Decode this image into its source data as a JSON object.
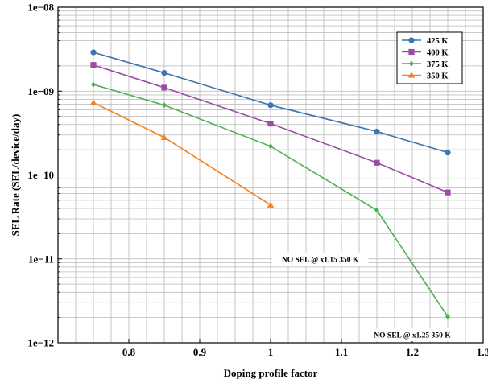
{
  "chart_data": {
    "type": "line",
    "xlabel": "Doping profile factor",
    "ylabel": "SEL Rate (SEL/device/day)",
    "xlim": [
      0.7,
      1.3
    ],
    "ylim": [
      1e-12,
      1e-08
    ],
    "y_scale": "log",
    "x_ticks": [
      {
        "value": 0.8,
        "label": "0.8"
      },
      {
        "value": 0.9,
        "label": "0.9"
      },
      {
        "value": 1.0,
        "label": "1"
      },
      {
        "value": 1.1,
        "label": "1.1"
      },
      {
        "value": 1.2,
        "label": "1.2"
      },
      {
        "value": 1.3,
        "label": "1.3"
      }
    ],
    "y_ticks": [
      {
        "value": 1e-12,
        "label": "1e−12"
      },
      {
        "value": 1e-11,
        "label": "1e−11"
      },
      {
        "value": 1e-10,
        "label": "1e−10"
      },
      {
        "value": 1e-09,
        "label": "1e−09"
      },
      {
        "value": 1e-08,
        "label": "1e−08"
      }
    ],
    "grid": true,
    "legend_position": "top-right",
    "series": [
      {
        "name": "425 K",
        "color": "#3a76b0",
        "marker": "circle",
        "x": [
          0.75,
          0.85,
          1.0,
          1.15,
          1.25
        ],
        "y": [
          2.9e-09,
          1.65e-09,
          6.8e-10,
          3.3e-10,
          1.85e-10
        ]
      },
      {
        "name": "400 K",
        "color": "#9b4aa6",
        "marker": "square",
        "x": [
          0.75,
          0.85,
          1.0,
          1.15,
          1.25
        ],
        "y": [
          2.05e-09,
          1.1e-09,
          4.1e-10,
          1.4e-10,
          6.2e-11
        ]
      },
      {
        "name": "375 K",
        "color": "#4caf50",
        "marker": "diamond",
        "x": [
          0.75,
          0.85,
          1.0,
          1.15,
          1.25
        ],
        "y": [
          1.2e-09,
          6.8e-10,
          2.2e-10,
          3.8e-11,
          2.05e-12
        ]
      },
      {
        "name": "350 K",
        "color": "#f58220",
        "marker": "triangle",
        "x": [
          0.75,
          0.85,
          1.0
        ],
        "y": [
          7.3e-10,
          2.8e-10,
          4.4e-11
        ]
      }
    ],
    "annotations": [
      {
        "text": "NO SEL @ x1.15 350 K",
        "x": 1.07,
        "y": 1e-11
      },
      {
        "text": "NO SEL @ x1.25 350 K",
        "x": 1.2,
        "y": 1.25e-12
      }
    ]
  }
}
